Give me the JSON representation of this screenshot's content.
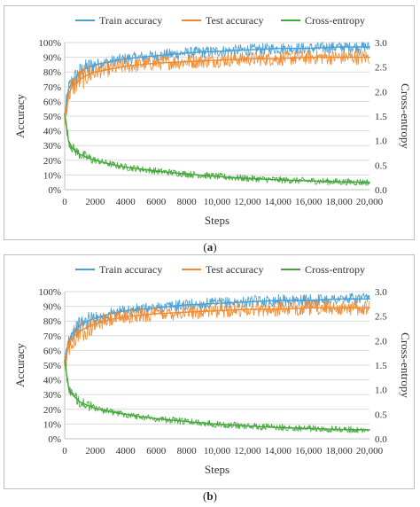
{
  "colors": {
    "train": "#4a9fd4",
    "test": "#f08a2f",
    "xent": "#44a83a",
    "grid": "#d9d9d9"
  },
  "panels": [
    {
      "caption_pre": "(",
      "caption_letter": "a",
      "caption_post": ")"
    },
    {
      "caption_pre": "(",
      "caption_letter": "b",
      "caption_post": ")"
    }
  ],
  "chart_data": [
    {
      "type": "line",
      "legend": [
        "Train accuracy",
        "Test accuracy",
        "Cross-entropy"
      ],
      "legend_position": "top",
      "xlabel": "Steps",
      "ylabel": "Accuracy",
      "y2label": "Cross-entropy",
      "xlim": [
        0,
        20000
      ],
      "ylim": [
        0,
        100
      ],
      "y2lim": [
        0,
        3.0
      ],
      "grid": true,
      "x_ticks": [
        "0",
        "2000",
        "4000",
        "6000",
        "8000",
        "10,000",
        "12,000",
        "14,000",
        "16,000",
        "18,000",
        "20,000"
      ],
      "y_ticks": [
        "0%",
        "10%",
        "20%",
        "30%",
        "40%",
        "50%",
        "60%",
        "70%",
        "80%",
        "90%",
        "100%"
      ],
      "y2_ticks": [
        "0.0",
        "0.5",
        "1.0",
        "1.5",
        "2.0",
        "2.5",
        "3.0"
      ],
      "x": [
        0,
        250,
        500,
        1000,
        1500,
        2000,
        3000,
        4000,
        5000,
        6000,
        8000,
        10000,
        12000,
        14000,
        16000,
        18000,
        20000
      ],
      "series": [
        {
          "name": "Train accuracy",
          "axis": "left",
          "values": [
            50,
            68,
            74,
            80,
            83,
            85,
            87,
            89,
            90,
            91,
            93,
            94,
            95,
            96,
            96,
            97,
            97
          ]
        },
        {
          "name": "Test accuracy",
          "axis": "left",
          "values": [
            48,
            65,
            70,
            75,
            78,
            80,
            82,
            84,
            85,
            86,
            87,
            88,
            89,
            89,
            90,
            90,
            90
          ]
        },
        {
          "name": "Cross-entropy",
          "axis": "right",
          "values": [
            1.55,
            1.0,
            0.85,
            0.72,
            0.65,
            0.6,
            0.52,
            0.46,
            0.42,
            0.38,
            0.32,
            0.27,
            0.23,
            0.2,
            0.18,
            0.16,
            0.15
          ]
        }
      ]
    },
    {
      "type": "line",
      "legend": [
        "Train accuracy",
        "Test accuracy",
        "Cross-entropy"
      ],
      "legend_position": "top",
      "xlabel": "Steps",
      "ylabel": "Accuracy",
      "y2label": "Cross-entropy",
      "xlim": [
        0,
        20000
      ],
      "ylim": [
        0,
        100
      ],
      "y2lim": [
        0,
        3.0
      ],
      "grid": true,
      "x_ticks": [
        "0",
        "2000",
        "4000",
        "6000",
        "8000",
        "10,000",
        "12,000",
        "14,000",
        "16,000",
        "18,000",
        "20,000"
      ],
      "y_ticks": [
        "0%",
        "10%",
        "20%",
        "30%",
        "40%",
        "50%",
        "60%",
        "70%",
        "80%",
        "90%",
        "100%"
      ],
      "y2_ticks": [
        "0.0",
        "0.5",
        "1.0",
        "1.5",
        "2.0",
        "2.5",
        "3.0"
      ],
      "x": [
        0,
        250,
        500,
        1000,
        1500,
        2000,
        3000,
        4000,
        5000,
        6000,
        8000,
        10000,
        12000,
        14000,
        16000,
        18000,
        20000
      ],
      "series": [
        {
          "name": "Train accuracy",
          "axis": "left",
          "values": [
            52,
            66,
            72,
            77,
            80,
            82,
            85,
            87,
            88,
            89,
            91,
            92,
            93,
            94,
            94,
            95,
            95
          ]
        },
        {
          "name": "Test accuracy",
          "axis": "left",
          "values": [
            50,
            64,
            69,
            73,
            76,
            78,
            81,
            83,
            84,
            85,
            86,
            87,
            88,
            88,
            89,
            89,
            89
          ]
        },
        {
          "name": "Cross-entropy",
          "axis": "right",
          "values": [
            1.6,
            1.05,
            0.9,
            0.75,
            0.68,
            0.62,
            0.55,
            0.5,
            0.45,
            0.41,
            0.35,
            0.3,
            0.26,
            0.23,
            0.21,
            0.19,
            0.18
          ]
        }
      ]
    }
  ]
}
